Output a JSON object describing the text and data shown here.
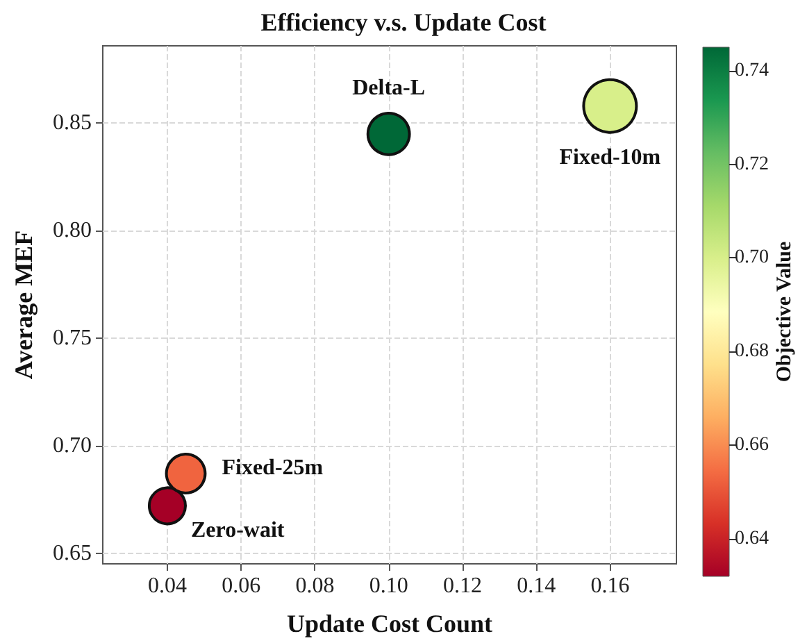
{
  "chart_data": {
    "type": "bubble",
    "title": "Efficiency v.s. Update Cost",
    "xlabel": "Update Cost Count",
    "ylabel": "Average MEF",
    "clabel": "Objective Value",
    "xlim": [
      0.0225,
      0.178
    ],
    "xticks": [
      0.04,
      0.06,
      0.08,
      {
        "value": 0.1,
        "label": "0.10"
      },
      0.12,
      0.14,
      0.16
    ],
    "ylim": [
      0.645,
      0.886
    ],
    "yticks": [
      0.65,
      {
        "value": 0.7,
        "label": "0.70"
      },
      0.75,
      {
        "value": 0.8,
        "label": "0.80"
      },
      0.85
    ],
    "clim": [
      0.632,
      0.745
    ],
    "cticks": [
      0.64,
      0.66,
      0.68,
      {
        "value": 0.7,
        "label": "0.70"
      },
      0.72,
      0.74
    ],
    "grid": true,
    "series": [
      {
        "name": "Zero-wait",
        "x": [
          0.04
        ],
        "values": [
          0.672
        ],
        "sizes": [
          0.47
        ],
        "cvalues": [
          0.632
        ]
      },
      {
        "name": "Fixed-25m",
        "x": [
          0.045
        ],
        "values": [
          0.687
        ],
        "sizes": [
          0.54
        ],
        "cvalues": [
          0.653
        ]
      },
      {
        "name": "Delta-L",
        "x": [
          0.1
        ],
        "values": [
          0.845
        ],
        "sizes": [
          0.62
        ],
        "cvalues": [
          0.745
        ]
      },
      {
        "name": "Fixed-10m",
        "x": [
          0.16
        ],
        "values": [
          0.858
        ],
        "sizes": [
          1
        ],
        "cvalues": [
          0.7
        ]
      }
    ]
  }
}
